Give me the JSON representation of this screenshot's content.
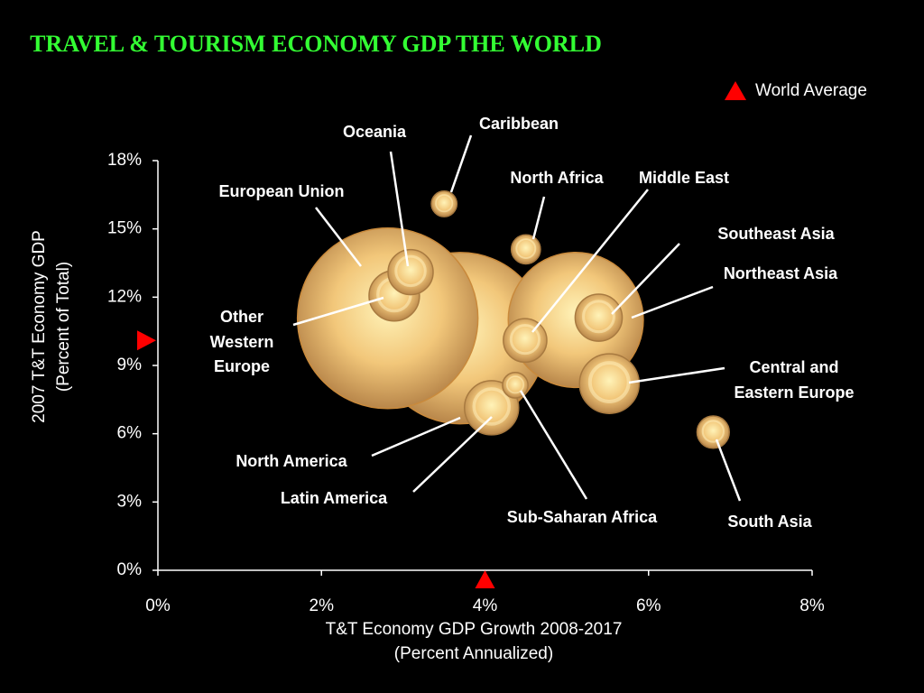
{
  "chart_data": {
    "type": "bubble",
    "title": "TRAVEL & TOURISM ECONOMY GDP  THE WORLD",
    "x_label": [
      "T&T Economy GDP Growth 2008-2017",
      "(Percent Annualized)"
    ],
    "y_label": [
      "2007 T&T Economy GDP",
      "(Percent of Total)"
    ],
    "xlim": [
      0,
      8
    ],
    "ylim": [
      0,
      18
    ],
    "xticks": [
      {
        "value": 0,
        "label": "0%"
      },
      {
        "value": 2,
        "label": "2%"
      },
      {
        "value": 4,
        "label": "4%"
      },
      {
        "value": 6,
        "label": "6%"
      },
      {
        "value": 8,
        "label": "8%"
      }
    ],
    "yticks": [
      {
        "value": 0,
        "label": "0%"
      },
      {
        "value": 3,
        "label": "3%"
      },
      {
        "value": 6,
        "label": "6%"
      },
      {
        "value": 9,
        "label": "9%"
      },
      {
        "value": 12,
        "label": "12%"
      },
      {
        "value": 15,
        "label": "15%"
      },
      {
        "value": 18,
        "label": "18%"
      }
    ],
    "grid": false,
    "color": "#f0c070",
    "points": [
      {
        "label": "North America",
        "x": 3.7,
        "y": 10.2,
        "size": 90
      },
      {
        "label": "European Union",
        "x": 2.81,
        "y": 11.07,
        "size": 100
      },
      {
        "label": "Northeast Asia",
        "x": 5.11,
        "y": 11.0,
        "size": 56
      },
      {
        "label": "Other Western Europe",
        "x": 2.89,
        "y": 12.06,
        "size": 7.8
      },
      {
        "label": "Oceania",
        "x": 3.09,
        "y": 13.1,
        "size": 6.25
      },
      {
        "label": "Caribbean",
        "x": 3.5,
        "y": 16.1,
        "size": 2
      },
      {
        "label": "North Africa",
        "x": 4.5,
        "y": 14.1,
        "size": 2.6
      },
      {
        "label": "Middle East",
        "x": 4.49,
        "y": 10.1,
        "size": 5.8
      },
      {
        "label": "Southeast Asia",
        "x": 5.39,
        "y": 11.1,
        "size": 6.8
      },
      {
        "label": "Central and Eastern Europe",
        "x": 5.52,
        "y": 8.2,
        "size": 10.9
      },
      {
        "label": "Latin America",
        "x": 4.08,
        "y": 7.14,
        "size": 9
      },
      {
        "label": "Sub-Saharan Africa",
        "x": 4.37,
        "y": 8.13,
        "size": 2
      },
      {
        "label": "South Asia",
        "x": 6.79,
        "y": 6.07,
        "size": 3.2
      }
    ],
    "world_average": {
      "label": "World Average",
      "x": 4,
      "y": 10.1,
      "color": "#ff0000"
    }
  }
}
